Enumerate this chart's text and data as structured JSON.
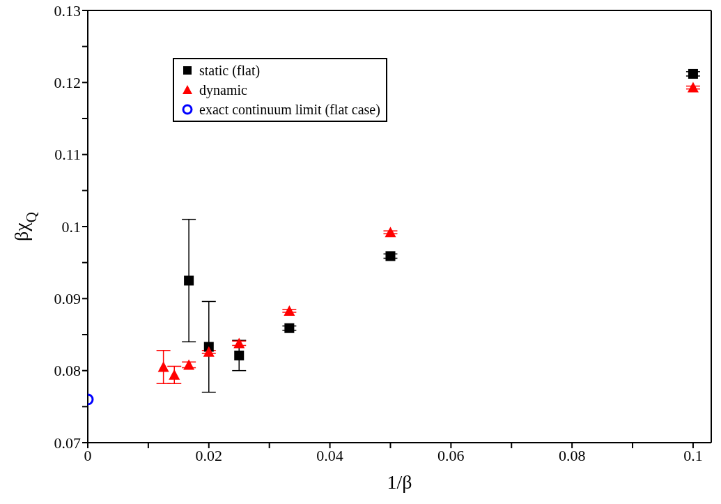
{
  "chart_data": {
    "type": "scatter",
    "xlabel": "1/β",
    "ylabel": "βχ$_{Q}$",
    "xlim": [
      0,
      0.103
    ],
    "ylim": [
      0.07,
      0.13
    ],
    "xticks": [
      0,
      {
        "value": 0.01,
        "label": null
      },
      0.02,
      {
        "value": 0.03,
        "label": null
      },
      0.04,
      {
        "value": 0.05,
        "label": null
      },
      0.06,
      {
        "value": 0.07,
        "label": null
      },
      0.08,
      {
        "value": 0.09,
        "label": null
      },
      0.1
    ],
    "yticks": [
      0.07,
      {
        "value": 0.075,
        "label": null
      },
      0.08,
      {
        "value": 0.085,
        "label": null
      },
      0.09,
      {
        "value": 0.095,
        "label": null
      },
      0.1,
      {
        "value": 0.105,
        "label": null
      },
      0.11,
      {
        "value": 0.115,
        "label": null
      },
      0.12,
      {
        "value": 0.125,
        "label": null
      },
      0.13
    ],
    "legend": "top left",
    "series": [
      {
        "name": "static (flat)",
        "color": "#000000",
        "marker": "square",
        "x": [
          0.0167,
          0.02,
          0.025,
          0.0333,
          0.05,
          0.1
        ],
        "values": [
          0.0925,
          0.0833,
          0.0821,
          0.0859,
          0.0959,
          0.1212
        ],
        "errors": [
          0.0085,
          0.0063,
          0.0021,
          0.0003,
          0.0003,
          0.0003
        ]
      },
      {
        "name": "dynamic",
        "color": "#ff0000",
        "marker": "triangle",
        "x": [
          0.0125,
          0.0143,
          0.0167,
          0.02,
          0.025,
          0.0333,
          0.05,
          0.1
        ],
        "values": [
          0.0805,
          0.0794,
          0.0808,
          0.0826,
          0.0838,
          0.0883,
          0.0992,
          0.1193
        ],
        "errors": [
          0.0023,
          0.0012,
          0.0004,
          0.0002,
          0.0003,
          0.0002,
          0.0002,
          0.0002
        ]
      },
      {
        "name": "exact continuum limit (flat case)",
        "color": "#0000ff",
        "marker": "circle",
        "x": [
          0
        ],
        "values": [
          0.076
        ]
      }
    ]
  }
}
